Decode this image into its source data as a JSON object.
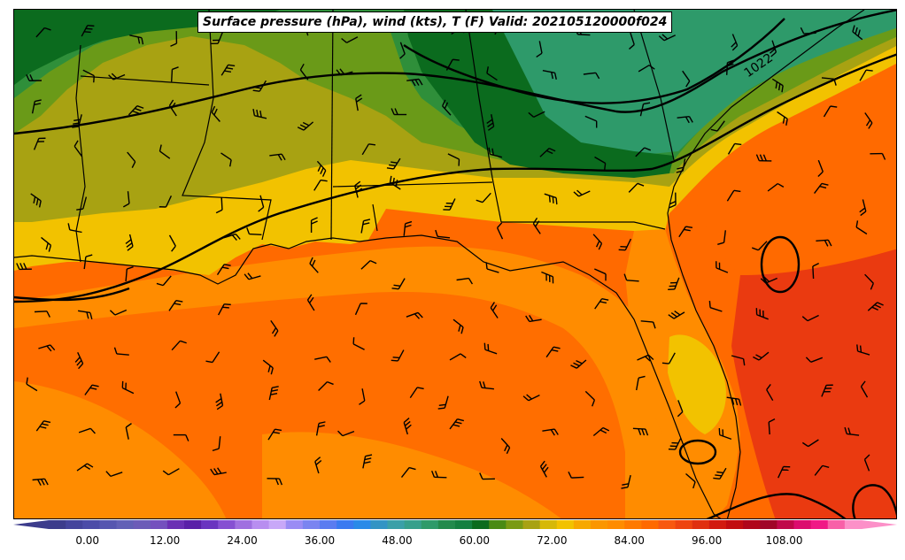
{
  "map": {
    "title": "Surface pressure (hPa), wind (kts), T (F) Valid: 202105120000f024",
    "region": "Southeastern United States and Gulf of Mexico",
    "isobar_label": "1022",
    "colors": {
      "land_green_dark": "#0b6b1e",
      "land_green": "#2f8f3a",
      "land_teal": "#2e9a6a",
      "land_olive": "#6a9a18",
      "land_yellow_olive": "#a8a212",
      "land_yellow": "#f2c200",
      "water_warm": "#ff8c00",
      "water_hot": "#ff6a00",
      "water_hottest": "#ea3a10",
      "coast": "#000000"
    }
  },
  "colorbar": {
    "ticks": [
      "0.00",
      "12.00",
      "24.00",
      "36.00",
      "48.00",
      "60.00",
      "72.00",
      "84.00",
      "96.00",
      "108.00"
    ],
    "range": [
      -6,
      120
    ],
    "step": 3,
    "colors": [
      "#3c3c8c",
      "#44449c",
      "#4c4ca8",
      "#5656b0",
      "#6260b6",
      "#6c5cb8",
      "#7450be",
      "#6a2fb4",
      "#5a20a8",
      "#6a34c0",
      "#8650d2",
      "#a070e0",
      "#b88ef0",
      "#c8a8f8",
      "#9a8cf4",
      "#7a84f0",
      "#5a7cf0",
      "#3a7af0",
      "#2a8ae8",
      "#3294c4",
      "#3aa0a8",
      "#36a08c",
      "#2e9a6a",
      "#228a4c",
      "#148040",
      "#0b6b1e",
      "#4a8a14",
      "#7a9a12",
      "#a8a212",
      "#d6b808",
      "#f2c200",
      "#f7a800",
      "#fb9600",
      "#ff8c00",
      "#ff7a00",
      "#ff6a00",
      "#f85810",
      "#ee4410",
      "#e03010",
      "#d21a10",
      "#c20c10",
      "#b0061a",
      "#a00628",
      "#c0084a",
      "#dc0c6e",
      "#f01886",
      "#f860a8",
      "#fc90c8"
    ]
  }
}
